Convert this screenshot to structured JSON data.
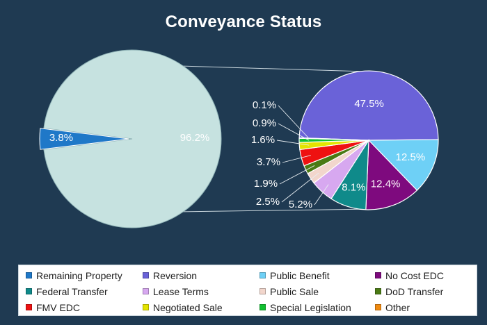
{
  "chart_data": {
    "type": "pie-of-pie",
    "title": "Conveyance Status",
    "main_pie": {
      "slices": [
        {
          "name": "Remaining Property",
          "value": 3.8,
          "label": "3.8%",
          "color": "#1f78c8"
        },
        {
          "name": "",
          "value": 96.2,
          "label": "96.2%",
          "color": "#c6e2e0"
        }
      ]
    },
    "secondary_pie": {
      "slices": [
        {
          "name": "Reversion",
          "value": 47.5,
          "label": "47.5%",
          "color": "#6a62d8"
        },
        {
          "name": "Public Benefit",
          "value": 12.5,
          "label": "12.5%",
          "color": "#6ed0f6"
        },
        {
          "name": "No Cost EDC",
          "value": 12.4,
          "label": "12.4%",
          "color": "#7e0a7e"
        },
        {
          "name": "Federal Transfer",
          "value": 8.1,
          "label": "8.1%",
          "color": "#0f8a8a"
        },
        {
          "name": "Lease Terms",
          "value": 5.2,
          "label": "5.2%",
          "color": "#d7a8f0"
        },
        {
          "name": "Public Sale",
          "value": 2.5,
          "label": "2.5%",
          "color": "#f2d6cc"
        },
        {
          "name": "DoD Transfer",
          "value": 1.9,
          "label": "1.9%",
          "color": "#4a7a14"
        },
        {
          "name": "FMV EDC",
          "value": 3.7,
          "label": "3.7%",
          "color": "#ee1111"
        },
        {
          "name": "Negotiated Sale",
          "value": 1.6,
          "label": "1.6%",
          "color": "#e4e400"
        },
        {
          "name": "Special Legislation",
          "value": 0.9,
          "label": "0.9%",
          "color": "#10c030"
        },
        {
          "name": "Other",
          "value": 0.1,
          "label": "0.1%",
          "color": "#f08a10"
        }
      ]
    },
    "legend": {
      "position": "bottom",
      "entries": [
        {
          "label": "Remaining Property",
          "color": "#1f78c8"
        },
        {
          "label": "Reversion",
          "color": "#6a62d8"
        },
        {
          "label": "Public Benefit",
          "color": "#6ed0f6"
        },
        {
          "label": "No Cost EDC",
          "color": "#7e0a7e"
        },
        {
          "label": "Federal Transfer",
          "color": "#0f8a8a"
        },
        {
          "label": "Lease Terms",
          "color": "#d7a8f0"
        },
        {
          "label": "Public Sale",
          "color": "#f2d6cc"
        },
        {
          "label": "DoD Transfer",
          "color": "#4a7a14"
        },
        {
          "label": "FMV EDC",
          "color": "#ee1111"
        },
        {
          "label": "Negotiated Sale",
          "color": "#e4e400"
        },
        {
          "label": "Special Legislation",
          "color": "#10c030"
        },
        {
          "label": "Other",
          "color": "#f08a10"
        }
      ]
    }
  }
}
